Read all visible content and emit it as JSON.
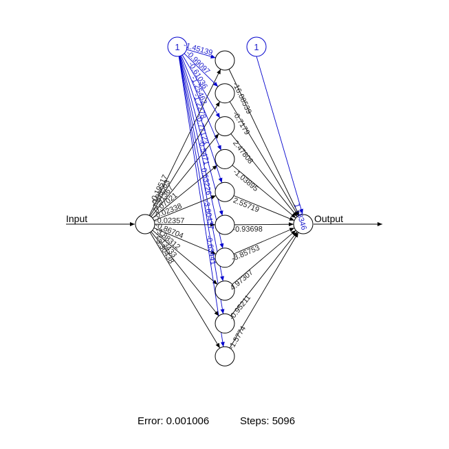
{
  "network": {
    "input_label": "Input",
    "output_label": "Output",
    "bias_hidden_label": "1",
    "bias_output_label": "1",
    "input_to_hidden_weights": [
      "-0.19517",
      "-0.93563",
      "-1.91367",
      "-0.07021",
      "-0.02338",
      "-0.02357",
      "-0.86704",
      "-3.88312",
      "-2.13433",
      "-3.30438"
    ],
    "bias_to_hidden_weights": [
      "-1.45139",
      "-0.99097",
      "-0.61036",
      "-1.25462",
      "-1.2278",
      "-0.77123",
      "-0.5471",
      "0.53226",
      "-3.60437",
      "-0.63441"
    ],
    "hidden_to_output_weights": [
      "-16.08539",
      "-0.7179",
      "2.47808",
      "-1.03895",
      "2.55719",
      "-0.93698",
      "-3.85753",
      "4.97307",
      "-0.95211",
      "-1.5774"
    ],
    "bias_to_output_weight": "1.78346"
  },
  "footer": {
    "error_text": "Error: 0.001006",
    "steps_text": "Steps: 5096"
  },
  "colors": {
    "edge": "#000000",
    "bias_edge": "#0000cc",
    "bias_text": "#1a1acc"
  }
}
